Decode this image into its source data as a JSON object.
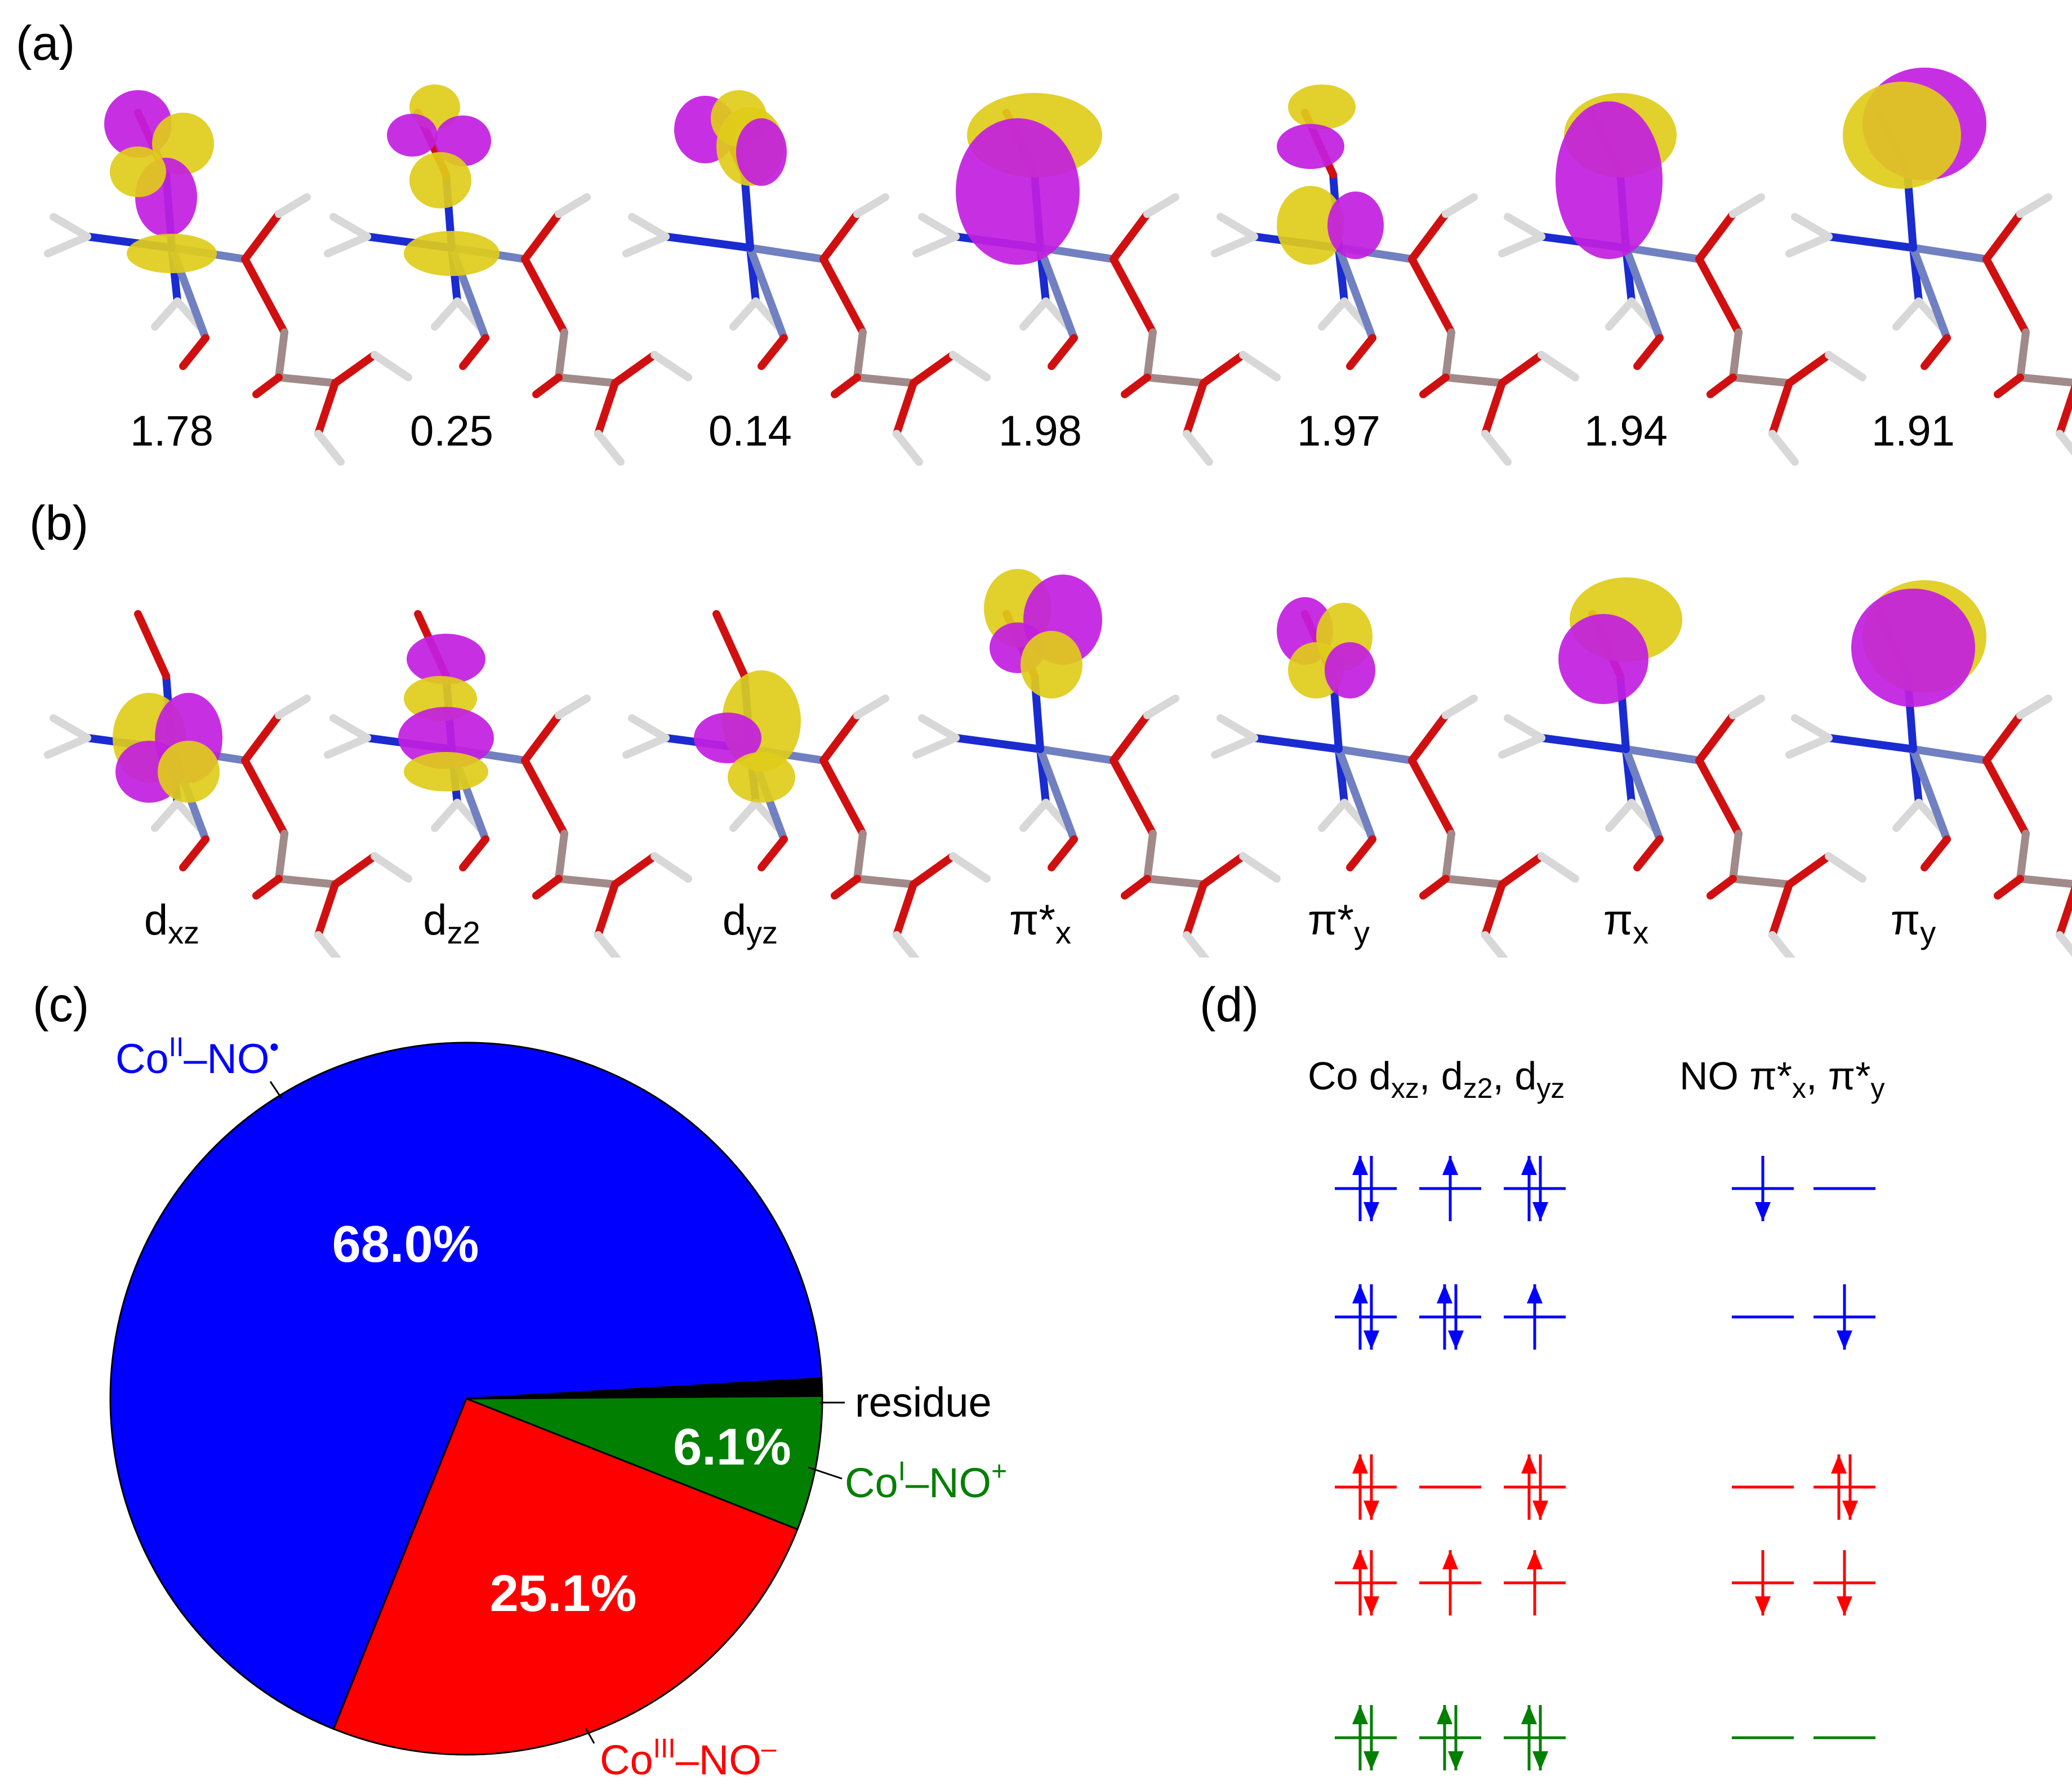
{
  "panels": {
    "a": "(a)",
    "b": "(b)",
    "c": "(c)",
    "d": "(d)"
  },
  "occupations": [
    "1.78",
    "0.25",
    "0.14",
    "1.98",
    "1.97",
    "1.94",
    "1.91"
  ],
  "orbital_labels": [
    {
      "base": "d",
      "sub": "xz"
    },
    {
      "base": "d",
      "sub": "z2"
    },
    {
      "base": "d",
      "sub": "yz"
    },
    {
      "base": "π*",
      "sub": "x"
    },
    {
      "base": "π*",
      "sub": "y"
    },
    {
      "base": "π",
      "sub": "x"
    },
    {
      "base": "π",
      "sub": "y"
    }
  ],
  "colors": {
    "blue": "#0000ff",
    "red": "#ff0000",
    "green": "#007f00",
    "black": "#000000",
    "lobe_purple": "#c21ee0",
    "lobe_yellow": "#e0cc1a"
  },
  "chart_data": {
    "type": "pie",
    "slices": [
      {
        "name": "Co(II)-NO•",
        "value": 68.0,
        "label": "68.0%",
        "color": "#0000ff"
      },
      {
        "name": "Co(III)-NO−",
        "value": 25.1,
        "label": "25.1%",
        "color": "#ff0000"
      },
      {
        "name": "Co(I)-NO+",
        "value": 6.1,
        "label": "6.1%",
        "color": "#007f00"
      },
      {
        "name": "residue",
        "value": 0.8,
        "label": "",
        "color": "#000000"
      }
    ],
    "callouts": {
      "co2": {
        "a": "Co",
        "sup": "II",
        "b": "–NO",
        "sup2": "•"
      },
      "co3": {
        "a": "Co",
        "sup": "III",
        "b": "–NO",
        "sup2": "–"
      },
      "co1": {
        "a": "Co",
        "sup": "I",
        "b": "–NO",
        "sup2": "+"
      },
      "residue": "residue"
    }
  },
  "diagram": {
    "header_co": {
      "a": "Co d",
      "s1": "xz",
      "b": ", d",
      "s2": "z2",
      "c": ", d",
      "s3": "yz"
    },
    "header_no": {
      "a": "NO π*",
      "s1": "x",
      "b": ", π*",
      "s2": "y"
    },
    "rows": [
      {
        "color": "blue",
        "co": [
          "pair",
          "up",
          "pair"
        ],
        "no": [
          "down",
          "empty"
        ]
      },
      {
        "color": "blue",
        "co": [
          "pair",
          "pair",
          "up"
        ],
        "no": [
          "empty",
          "down"
        ]
      },
      {
        "color": "red",
        "co": [
          "pair",
          "empty",
          "pair"
        ],
        "no": [
          "empty",
          "pair"
        ]
      },
      {
        "color": "red",
        "co": [
          "pair",
          "up",
          "up"
        ],
        "no": [
          "down",
          "down"
        ]
      },
      {
        "color": "green",
        "co": [
          "pair",
          "pair",
          "pair"
        ],
        "no": [
          "empty",
          "empty"
        ]
      }
    ]
  }
}
